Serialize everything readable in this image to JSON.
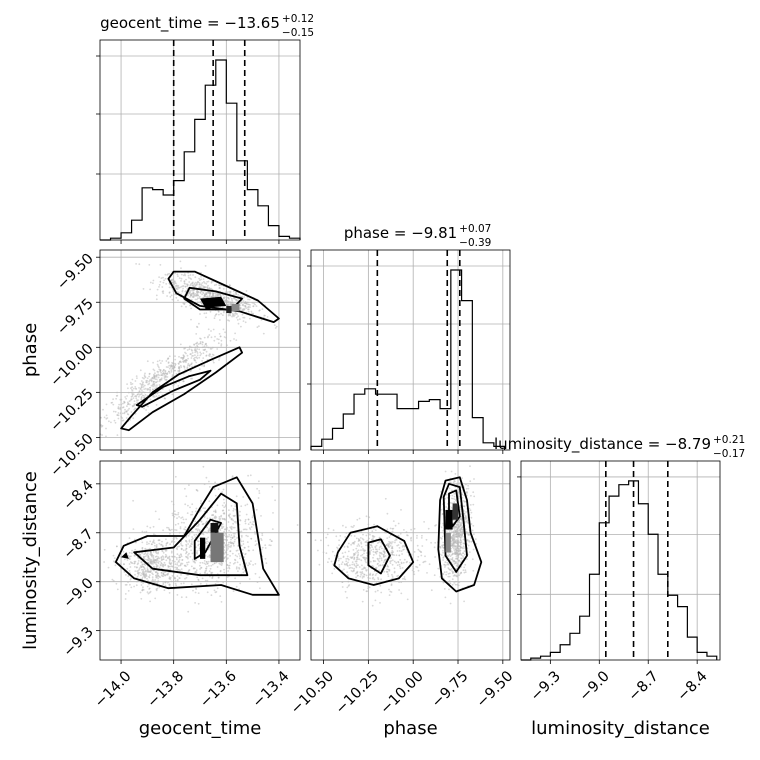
{
  "chart_data": {
    "type": "corner",
    "parameters": [
      "geocent_time",
      "phase",
      "luminosity_distance"
    ],
    "axis_labels": {
      "geocent_time": "geocent_time",
      "phase": "phase",
      "luminosity_distance": "luminosity_distance"
    },
    "ranges": {
      "geocent_time": [
        -14.08,
        -13.32
      ],
      "phase": [
        -10.57,
        -9.46
      ],
      "luminosity_distance": [
        -9.48,
        -8.26
      ]
    },
    "tick_values": {
      "geocent_time": [
        -14.0,
        -13.8,
        -13.6,
        -13.4
      ],
      "phase": [
        -10.5,
        -10.25,
        -10.0,
        -9.75,
        -9.5
      ],
      "luminosity_distance": [
        -9.3,
        -9.0,
        -8.7,
        -8.4
      ]
    },
    "tick_labels": {
      "geocent_time": [
        "−14.0",
        "−13.8",
        "−13.6",
        "−13.4"
      ],
      "phase": [
        "−10.50",
        "−10.25",
        "−10.00",
        "−9.75",
        "−9.50"
      ],
      "luminosity_distance": [
        "−9.3",
        "−9.0",
        "−8.7",
        "−8.4"
      ]
    },
    "titles": [
      {
        "param": "geocent_time",
        "main": "geocent_time = −13.65",
        "sup": "+0.12",
        "sub": "−0.15"
      },
      {
        "param": "phase",
        "main": "phase = −9.81",
        "sup": "+0.07",
        "sub": "−0.39"
      },
      {
        "param": "luminosity_distance",
        "main": "luminosity_distance = −8.79",
        "sup": "+0.21",
        "sub": "−0.17"
      }
    ],
    "quantiles": {
      "geocent_time": [
        -13.8,
        -13.65,
        -13.53
      ],
      "phase": [
        -10.2,
        -9.81,
        -9.74
      ],
      "luminosity_distance": [
        -8.96,
        -8.79,
        -8.58
      ]
    },
    "histograms": {
      "geocent_time": {
        "edges": [
          -14.08,
          -14.04,
          -14.0,
          -13.96,
          -13.92,
          -13.88,
          -13.84,
          -13.8,
          -13.76,
          -13.72,
          -13.68,
          -13.64,
          -13.6,
          -13.56,
          -13.52,
          -13.48,
          -13.44,
          -13.4,
          -13.36,
          -13.32
        ],
        "counts": [
          0.0,
          0.01,
          0.04,
          0.11,
          0.29,
          0.28,
          0.25,
          0.33,
          0.49,
          0.67,
          0.86,
          1.0,
          0.76,
          0.44,
          0.28,
          0.19,
          0.08,
          0.02,
          0.01
        ]
      },
      "phase": {
        "edges": [
          -10.57,
          -10.51,
          -10.45,
          -10.39,
          -10.33,
          -10.27,
          -10.21,
          -10.15,
          -10.09,
          -10.03,
          -9.97,
          -9.91,
          -9.85,
          -9.79,
          -9.73,
          -9.67,
          -9.61,
          -9.55,
          -9.49
        ],
        "counts": [
          0.02,
          0.06,
          0.12,
          0.2,
          0.31,
          0.34,
          0.31,
          0.31,
          0.23,
          0.23,
          0.27,
          0.28,
          0.23,
          1.0,
          0.83,
          0.18,
          0.04,
          0.02
        ]
      },
      "luminosity_distance": {
        "edges": [
          -9.48,
          -9.42,
          -9.36,
          -9.3,
          -9.24,
          -9.18,
          -9.12,
          -9.06,
          -9.0,
          -8.94,
          -8.88,
          -8.82,
          -8.76,
          -8.7,
          -8.64,
          -8.58,
          -8.52,
          -8.46,
          -8.4,
          -8.34,
          -8.28
        ],
        "counts": [
          0.0,
          0.01,
          0.02,
          0.04,
          0.08,
          0.14,
          0.23,
          0.45,
          0.72,
          0.86,
          0.92,
          0.94,
          0.82,
          0.66,
          0.45,
          0.34,
          0.28,
          0.12,
          0.04,
          0.02
        ]
      }
    },
    "grid": true
  }
}
